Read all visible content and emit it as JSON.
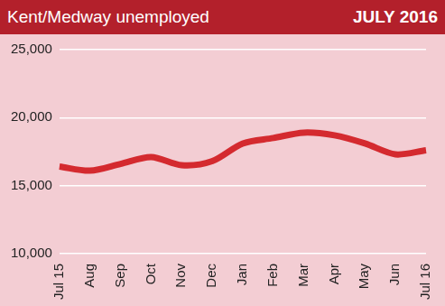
{
  "chart_data": {
    "type": "line",
    "title": "Kent/Medway unemployed",
    "subtitle": "JULY 2016",
    "categories": [
      "Jul 15",
      "Aug",
      "Sep",
      "Oct",
      "Nov",
      "Dec",
      "Jan",
      "Feb",
      "Mar",
      "Apr",
      "May",
      "Jun",
      "Jul 16"
    ],
    "values": [
      16400,
      16100,
      16600,
      17100,
      16500,
      16800,
      18100,
      18500,
      18900,
      18700,
      18100,
      17300,
      17600
    ],
    "color": "#d42a2f",
    "ylim": [
      10000,
      25000
    ],
    "yticks": [
      {
        "value": 10000,
        "label": "10,000"
      },
      {
        "value": 15000,
        "label": "15,000"
      },
      {
        "value": 20000,
        "label": "20,000"
      },
      {
        "value": 25000,
        "label": "25,000"
      }
    ],
    "grid": true
  }
}
